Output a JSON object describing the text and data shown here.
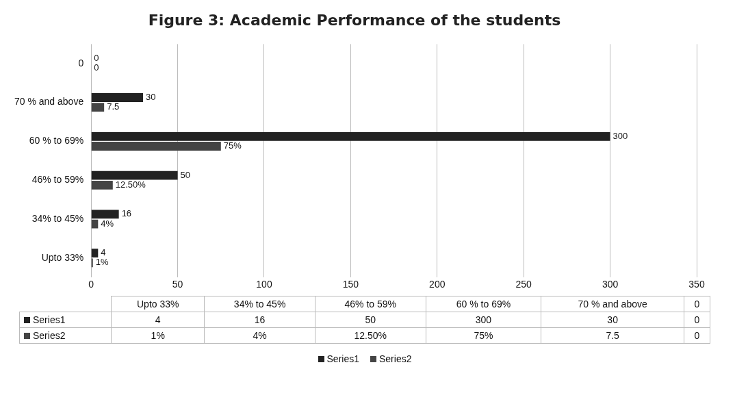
{
  "chart_data": {
    "type": "bar",
    "orientation": "horizontal",
    "title": "Figure 3: Academic Performance of the students",
    "categories": [
      "0",
      "70 % and above",
      "60 % to 69%",
      "46% to 59%",
      "34% to 45%",
      "Upto 33%"
    ],
    "series": [
      {
        "name": "Series1",
        "color": "#222222",
        "values": [
          0,
          30,
          300,
          50,
          16,
          4
        ],
        "value_labels": [
          "0",
          "30",
          "300",
          "50",
          "16",
          "4"
        ]
      },
      {
        "name": "Series2",
        "color": "#444444",
        "values": [
          0,
          7.5,
          75,
          12.5,
          4,
          1
        ],
        "value_labels": [
          "0",
          "7.5",
          "75%",
          "12.50%",
          "4%",
          "1%"
        ]
      }
    ],
    "xlim": [
      0,
      350
    ],
    "xticks": [
      0,
      50,
      100,
      150,
      200,
      250,
      300,
      350
    ],
    "grid": "x",
    "legend": "bottom"
  }
}
